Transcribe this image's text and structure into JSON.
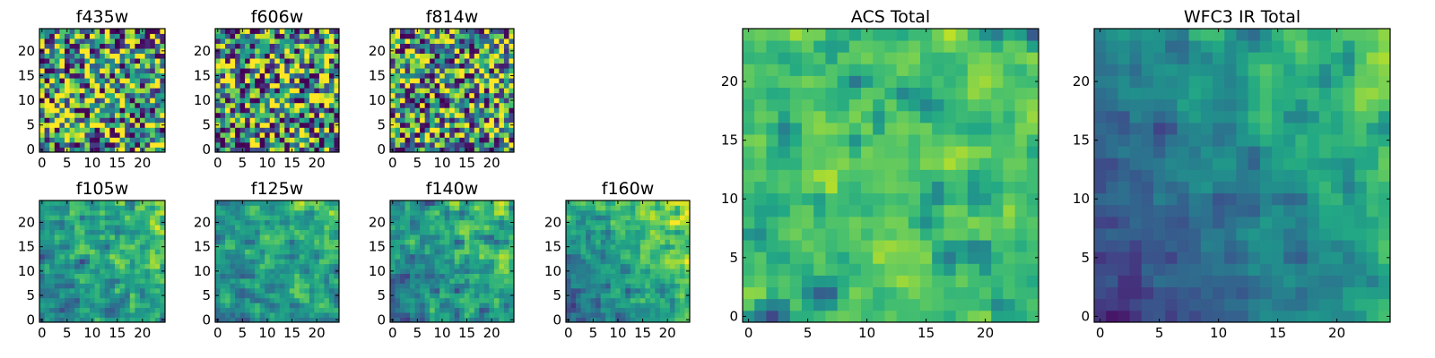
{
  "chart_data": [
    {
      "type": "heatmap",
      "title": "f435w",
      "size": 25,
      "xlim": [
        0,
        24
      ],
      "ylim": [
        0,
        24
      ],
      "xticks": [
        0,
        5,
        10,
        15,
        20
      ],
      "yticks": [
        0,
        5,
        10,
        15,
        20
      ],
      "colormap": "viridis",
      "noise": 0.95,
      "seed": 11,
      "gradient": 0.0
    },
    {
      "type": "heatmap",
      "title": "f606w",
      "size": 25,
      "xlim": [
        0,
        24
      ],
      "ylim": [
        0,
        24
      ],
      "xticks": [
        0,
        5,
        10,
        15,
        20
      ],
      "yticks": [
        0,
        5,
        10,
        15,
        20
      ],
      "colormap": "viridis",
      "noise": 0.95,
      "seed": 23,
      "gradient": 0.0
    },
    {
      "type": "heatmap",
      "title": "f814w",
      "size": 25,
      "xlim": [
        0,
        24
      ],
      "ylim": [
        0,
        24
      ],
      "xticks": [
        0,
        5,
        10,
        15,
        20
      ],
      "yticks": [
        0,
        5,
        10,
        15,
        20
      ],
      "colormap": "viridis",
      "noise": 0.9,
      "seed": 37,
      "gradient": 0.05
    },
    {
      "type": "heatmap",
      "title": "f105w",
      "size": 25,
      "xlim": [
        0,
        24
      ],
      "ylim": [
        0,
        24
      ],
      "xticks": [
        0,
        5,
        10,
        15,
        20
      ],
      "yticks": [
        0,
        5,
        10,
        15,
        20
      ],
      "colormap": "viridis",
      "noise": 0.5,
      "seed": 41,
      "gradient": 0.3
    },
    {
      "type": "heatmap",
      "title": "f125w",
      "size": 25,
      "xlim": [
        0,
        24
      ],
      "ylim": [
        0,
        24
      ],
      "xticks": [
        0,
        5,
        10,
        15,
        20
      ],
      "yticks": [
        0,
        5,
        10,
        15,
        20
      ],
      "colormap": "viridis",
      "noise": 0.5,
      "seed": 53,
      "gradient": 0.25
    },
    {
      "type": "heatmap",
      "title": "f140w",
      "size": 25,
      "xlim": [
        0,
        24
      ],
      "ylim": [
        0,
        24
      ],
      "xticks": [
        0,
        5,
        10,
        15,
        20
      ],
      "yticks": [
        0,
        5,
        10,
        15,
        20
      ],
      "colormap": "viridis",
      "noise": 0.5,
      "seed": 67,
      "gradient": 0.3
    },
    {
      "type": "heatmap",
      "title": "f160w",
      "size": 25,
      "xlim": [
        0,
        24
      ],
      "ylim": [
        0,
        24
      ],
      "xticks": [
        0,
        5,
        10,
        15,
        20
      ],
      "yticks": [
        0,
        5,
        10,
        15,
        20
      ],
      "colormap": "viridis",
      "noise": 0.45,
      "seed": 79,
      "gradient": 0.45
    },
    {
      "type": "heatmap",
      "title": "ACS Total",
      "size": 25,
      "xlim": [
        0,
        24
      ],
      "ylim": [
        0,
        24
      ],
      "xticks": [
        0,
        5,
        10,
        15,
        20
      ],
      "yticks": [
        0,
        5,
        10,
        15,
        20
      ],
      "colormap": "viridis",
      "noise": 0.35,
      "seed": 91,
      "gradient": 0.0,
      "base": 0.72
    },
    {
      "type": "heatmap",
      "title": "WFC3 IR Total",
      "size": 25,
      "xlim": [
        0,
        24
      ],
      "ylim": [
        0,
        24
      ],
      "xticks": [
        0,
        5,
        10,
        15,
        20
      ],
      "yticks": [
        0,
        5,
        10,
        15,
        20
      ],
      "colormap": "viridis",
      "noise": 0.3,
      "seed": 103,
      "gradient": 0.55,
      "base": 0.4
    }
  ],
  "colors": {
    "axis": "#000000",
    "background": "#ffffff"
  }
}
